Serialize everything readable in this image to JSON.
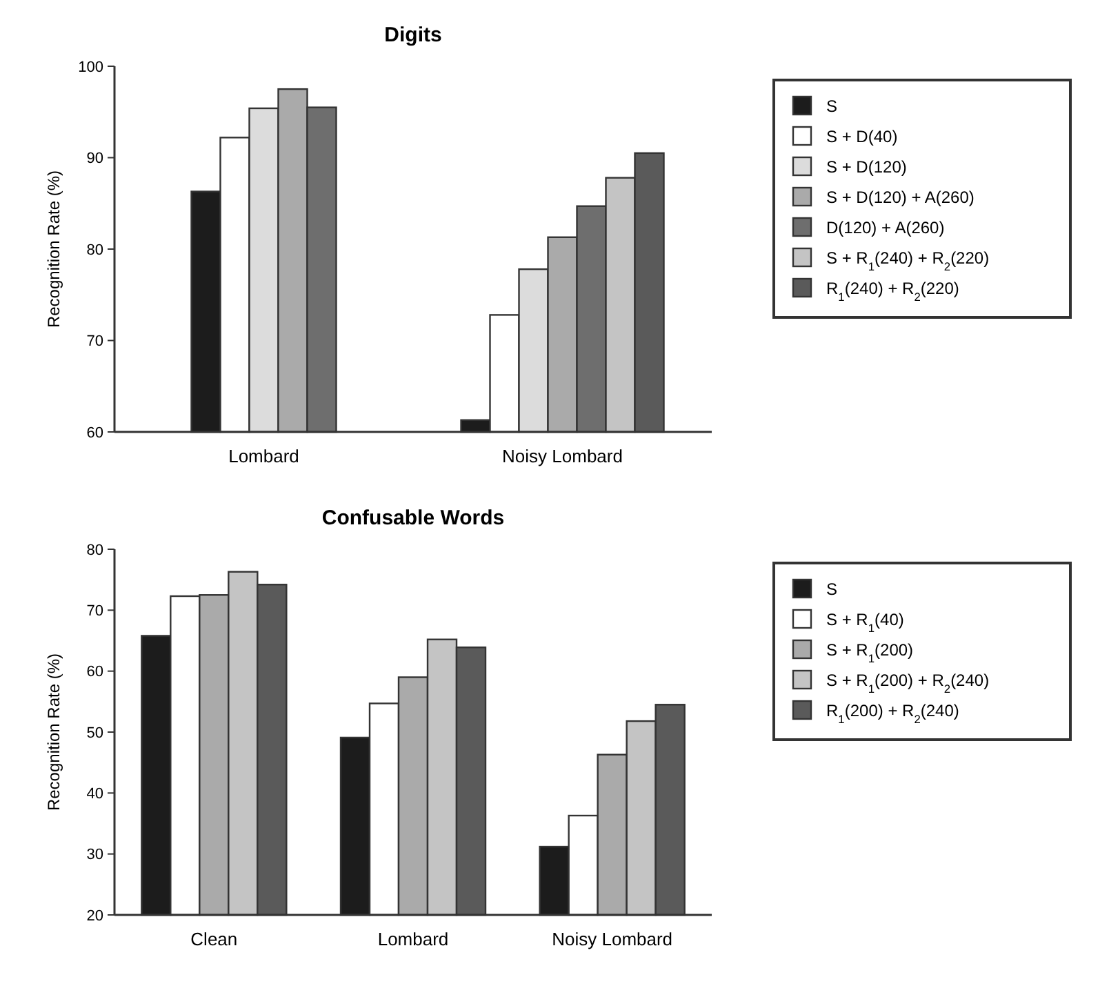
{
  "chart_data": [
    {
      "type": "bar",
      "title": "Digits",
      "ylabel": "Recognition Rate (%)",
      "categories": [
        "Lombard",
        "Noisy Lombard"
      ],
      "ylim": [
        60,
        100
      ],
      "yticks": [
        60,
        70,
        80,
        90,
        100
      ],
      "grid": false,
      "legend": "right",
      "series": [
        {
          "name": "S",
          "color": "#1c1c1c",
          "values": [
            86.3,
            61.3
          ]
        },
        {
          "name": "S + D(40)",
          "color": "#ffffff",
          "values": [
            92.2,
            72.8
          ]
        },
        {
          "name": "S + D(120)",
          "color": "#dcdcdc",
          "values": [
            95.4,
            77.8
          ]
        },
        {
          "name": "S + D(120) + A(260)",
          "color": "#aaaaaa",
          "values": [
            97.5,
            81.3
          ]
        },
        {
          "name": "D(120) + A(260)",
          "color": "#6e6e6e",
          "values": [
            95.5,
            84.7
          ]
        },
        {
          "name": "S + R$_{1}$(240) + R$_{2}$(220)",
          "color": "#c4c4c4",
          "values": [
            null,
            87.8
          ]
        },
        {
          "name": "R$_{1}$(240) + R$_{2}$(220)",
          "color": "#5a5a5a",
          "values": [
            null,
            90.5
          ]
        }
      ]
    },
    {
      "type": "bar",
      "title": "Confusable Words",
      "ylabel": "Recognition Rate (%)",
      "categories": [
        "Clean",
        "Lombard",
        "Noisy Lombard"
      ],
      "ylim": [
        20,
        80
      ],
      "yticks": [
        20,
        30,
        40,
        50,
        60,
        70,
        80
      ],
      "grid": false,
      "legend": "right",
      "series": [
        {
          "name": "S",
          "color": "#1c1c1c",
          "values": [
            65.8,
            49.1,
            31.2
          ]
        },
        {
          "name": "S + R$_{1}$(40)",
          "color": "#ffffff",
          "values": [
            72.3,
            54.7,
            36.3
          ]
        },
        {
          "name": "S + R$_{1}$(200)",
          "color": "#aaaaaa",
          "values": [
            72.5,
            59.0,
            46.3
          ]
        },
        {
          "name": "S + R$_{1}$(200) + R$_{2}$(240)",
          "color": "#c4c4c4",
          "values": [
            76.3,
            65.2,
            51.8
          ]
        },
        {
          "name": "R$_{1}$(200) + R$_{2}$(240)",
          "color": "#5a5a5a",
          "values": [
            74.2,
            63.9,
            54.5
          ]
        }
      ]
    }
  ]
}
